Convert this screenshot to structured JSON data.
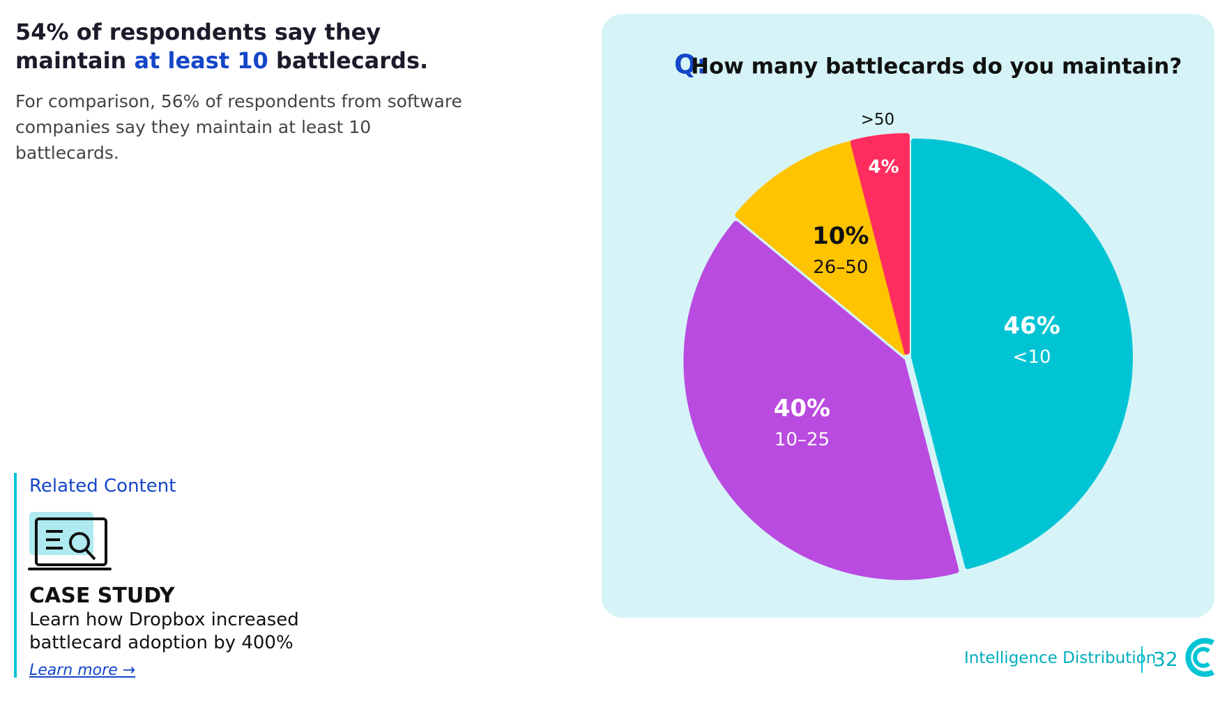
{
  "headline": [
    "54% of respondents say they maintain",
    "at least 10",
    "battlecards."
  ],
  "comparison": "For comparison, 56% of respondents from software companies say they maintain at least 10 battlecards.",
  "related": {
    "heading": "Related Content",
    "kind": "CASE STUDY",
    "text": "Learn how Dropbox increased battlecard adoption by 400%",
    "link": "Learn more →"
  },
  "footer": {
    "section": "Intelligence Distribution",
    "page": "32"
  },
  "chart_data": {
    "type": "pie",
    "title_prefix": "Q:",
    "title": "How many battlecards do you maintain?",
    "categories": [
      "<10",
      "10–25",
      "26–50",
      ">50"
    ],
    "values": [
      46,
      40,
      10,
      4
    ],
    "value_labels": [
      "46%",
      "40%",
      "10%",
      "4%"
    ],
    "colors": [
      "#00c4d4",
      "#b94be0",
      "#ffc300",
      "#ff2d5f"
    ]
  }
}
